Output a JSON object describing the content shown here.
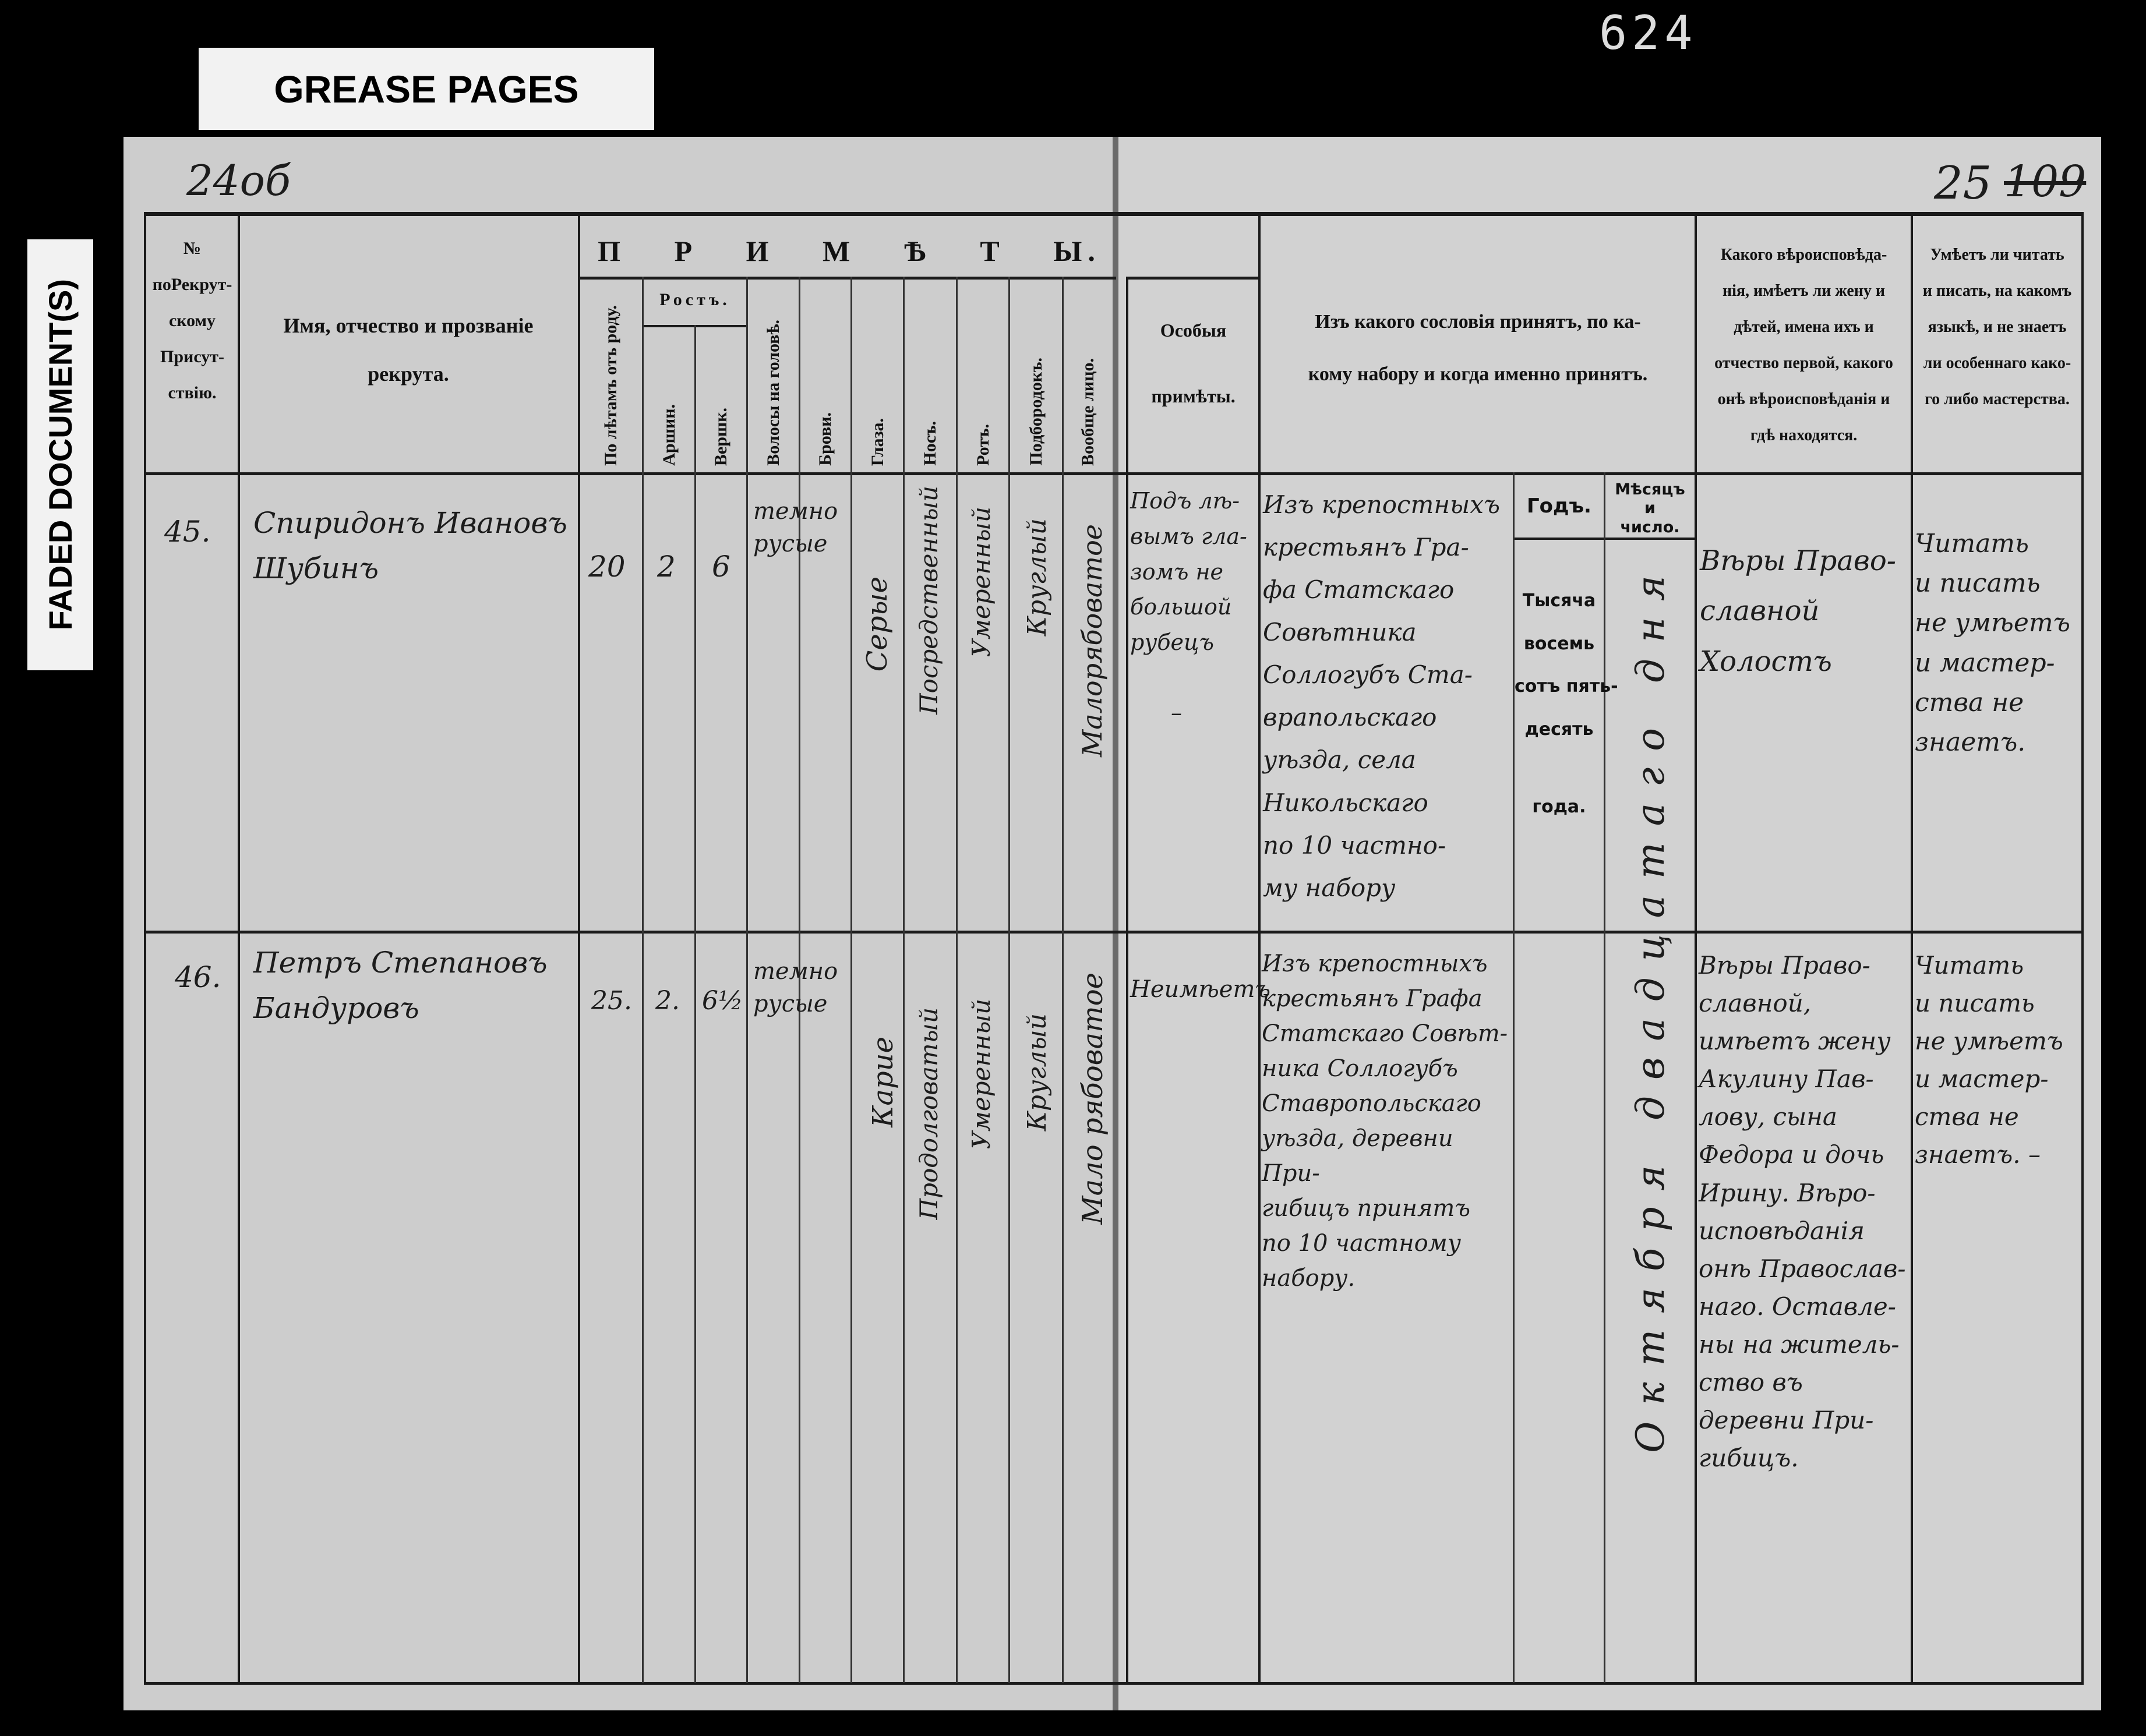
{
  "overlays": {
    "grease_label": "GREASE PAGES",
    "faded_label": "FADED DOCUMENT(S)"
  },
  "archive_number": "624",
  "left_page_number": "24об",
  "right_page_number": "25",
  "right_page_number_struck": "109",
  "header": {
    "no": [
      "№",
      "поРекрут-",
      "скому",
      "Присут-",
      "ствію."
    ],
    "name": [
      "Имя, отчество и прозваніе",
      "рекрута."
    ],
    "primety": "П Р И М Ѣ Т Ы.",
    "age": "По лѣтамъ отъ роду.",
    "height": "Ростъ.",
    "arshin": "Аршин.",
    "vershok": "Вершк.",
    "hair": "Волосы на головѣ.",
    "brows": "Брови.",
    "eyes": "Глаза.",
    "nose": "Носъ.",
    "mouth": "Ротъ.",
    "chin": "Подбородокъ.",
    "face": "Вообще лицо.",
    "special": [
      "Особыя",
      "примѣты."
    ],
    "origin": [
      "Изъ какого сословія принятъ, по ка-",
      "кому набору и когда именно принятъ."
    ],
    "year": "Годъ.",
    "month": [
      "Мѣсяцъ",
      "и",
      "число."
    ],
    "religion": [
      "Какого вѣроисповѣда-",
      "нія, имѣетъ ли жену и",
      "дѣтей, имена ихъ и",
      "отчество первой, какого",
      "онѣ вѣроисповѣданія и",
      "гдѣ находятся."
    ],
    "literacy": [
      "Умѣетъ ли читать",
      "и писать, на какомъ",
      "языкѣ, и не знаетъ",
      "ли особеннаго како-",
      "го либо мастерства."
    ]
  },
  "year_printed": [
    "Тысяча",
    "восемь",
    "сотъ пять-",
    "десять",
    "года."
  ],
  "month_entry": "Октября двадцатаго дня",
  "rows": [
    {
      "no": "45.",
      "name": [
        "Спиридонъ Ивановъ",
        "Шубинъ"
      ],
      "age": "20",
      "arshin": "2",
      "vershok": "6",
      "hair": [
        "темно",
        "русые"
      ],
      "eyes": "Серые",
      "nose": "Посредственный",
      "mouth": "Умеренный",
      "chin": "Круглый",
      "face": "Малорябоватое",
      "special": [
        "Подъ лѣ-",
        "вымъ гла-",
        "зомъ не",
        "большой",
        "рубецъ",
        "–"
      ],
      "origin": [
        "Изъ крепостныхъ",
        "крестьянъ Гра-",
        "фа Статскаго",
        "Совѣтника",
        "Соллогубъ Ста-",
        "врапольскаго",
        "уѣзда, села",
        "Никольскаго",
        "по 10 частно-",
        "му набору"
      ],
      "religion": [
        "Вѣры Право-",
        "славной",
        "Холостъ"
      ],
      "literacy": [
        "Читать",
        "и писать",
        "не умѣетъ",
        "и мастер-",
        "ства не",
        "знаетъ."
      ]
    },
    {
      "no": "46.",
      "name": [
        "Петръ Степановъ",
        "Бандуровъ"
      ],
      "age": "25.",
      "arshin": "2.",
      "vershok": "6½",
      "hair": [
        "темно",
        "русые"
      ],
      "eyes": "Карие",
      "nose": "Продолговатый",
      "mouth": "Умеренный",
      "chin": "Круглый",
      "face": "Мало рябоватое",
      "special": [
        "Неимѣетъ"
      ],
      "origin": [
        "Изъ крепостныхъ",
        "крестьянъ Графа",
        "Статскаго Совѣт-",
        "ника Соллогубъ",
        "Ставропольскаго",
        "уѣзда, деревни При-",
        "гибицъ принятъ",
        "по 10 частному",
        "набору."
      ],
      "religion": [
        "Вѣры Право-",
        "славной,",
        "имѣетъ жену",
        "Акулину Пав-",
        "лову, сына",
        "Федора и дочь",
        "Ирину. Вѣро-",
        "исповѣданія",
        "онѣ Православ-",
        "наго. Оставле-",
        "ны на житель-",
        "ство въ",
        "деревни При-",
        "гибицъ."
      ],
      "literacy": [
        "Читать",
        "и писать",
        "не умѣетъ",
        "и мастер-",
        "ства не",
        "знаетъ. –"
      ]
    }
  ]
}
